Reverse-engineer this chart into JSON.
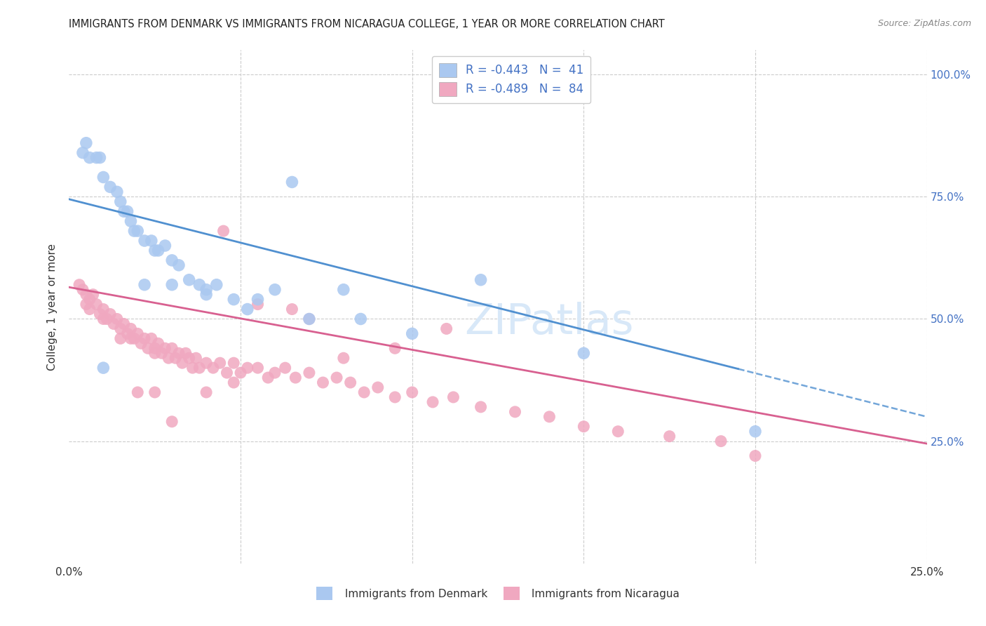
{
  "title": "IMMIGRANTS FROM DENMARK VS IMMIGRANTS FROM NICARAGUA COLLEGE, 1 YEAR OR MORE CORRELATION CHART",
  "source": "Source: ZipAtlas.com",
  "ylabel": "College, 1 year or more",
  "xlim": [
    0.0,
    0.25
  ],
  "ylim": [
    0.0,
    1.05
  ],
  "denmark_line_x": [
    0.0,
    0.25
  ],
  "denmark_line_y": [
    0.745,
    0.3
  ],
  "denmark_line_solid_end": 0.195,
  "nicaragua_line_x": [
    0.0,
    0.25
  ],
  "nicaragua_line_y": [
    0.565,
    0.245
  ],
  "denmark_dot_color": "#aac8f0",
  "denmark_line_color": "#5090d0",
  "nicaragua_dot_color": "#f0a8c0",
  "nicaragua_line_color": "#d86090",
  "background_color": "#ffffff",
  "grid_color": "#cccccc",
  "right_axis_color": "#4472c4",
  "legend_text_color": "#4472c4",
  "watermark_text": "ZIPatlas",
  "watermark_color": "#d8e8f8",
  "denmark_x": [
    0.004,
    0.005,
    0.006,
    0.008,
    0.009,
    0.01,
    0.012,
    0.014,
    0.015,
    0.017,
    0.018,
    0.019,
    0.02,
    0.022,
    0.024,
    0.026,
    0.028,
    0.03,
    0.032,
    0.035,
    0.038,
    0.04,
    0.043,
    0.048,
    0.052,
    0.06,
    0.07,
    0.08,
    0.1,
    0.12,
    0.15,
    0.2,
    0.016,
    0.025,
    0.03,
    0.055,
    0.065,
    0.085,
    0.04,
    0.022,
    0.01
  ],
  "denmark_y": [
    0.84,
    0.86,
    0.83,
    0.83,
    0.83,
    0.79,
    0.77,
    0.76,
    0.74,
    0.72,
    0.7,
    0.68,
    0.68,
    0.66,
    0.66,
    0.64,
    0.65,
    0.62,
    0.61,
    0.58,
    0.57,
    0.56,
    0.57,
    0.54,
    0.52,
    0.56,
    0.5,
    0.56,
    0.47,
    0.58,
    0.43,
    0.27,
    0.72,
    0.64,
    0.57,
    0.54,
    0.78,
    0.5,
    0.55,
    0.57,
    0.4
  ],
  "nicaragua_x": [
    0.003,
    0.004,
    0.005,
    0.005,
    0.006,
    0.006,
    0.007,
    0.008,
    0.009,
    0.01,
    0.01,
    0.011,
    0.012,
    0.013,
    0.014,
    0.015,
    0.015,
    0.016,
    0.017,
    0.018,
    0.018,
    0.019,
    0.02,
    0.021,
    0.022,
    0.023,
    0.024,
    0.025,
    0.025,
    0.026,
    0.027,
    0.028,
    0.029,
    0.03,
    0.031,
    0.032,
    0.033,
    0.034,
    0.035,
    0.036,
    0.037,
    0.038,
    0.04,
    0.042,
    0.044,
    0.046,
    0.048,
    0.05,
    0.052,
    0.055,
    0.058,
    0.06,
    0.063,
    0.066,
    0.07,
    0.074,
    0.078,
    0.082,
    0.086,
    0.09,
    0.095,
    0.1,
    0.106,
    0.112,
    0.12,
    0.13,
    0.14,
    0.15,
    0.16,
    0.175,
    0.19,
    0.2,
    0.04,
    0.045,
    0.055,
    0.07,
    0.03,
    0.025,
    0.02,
    0.048,
    0.065,
    0.08,
    0.095,
    0.11
  ],
  "nicaragua_y": [
    0.57,
    0.56,
    0.55,
    0.53,
    0.54,
    0.52,
    0.55,
    0.53,
    0.51,
    0.52,
    0.5,
    0.5,
    0.51,
    0.49,
    0.5,
    0.48,
    0.46,
    0.49,
    0.47,
    0.48,
    0.46,
    0.46,
    0.47,
    0.45,
    0.46,
    0.44,
    0.46,
    0.44,
    0.43,
    0.45,
    0.43,
    0.44,
    0.42,
    0.44,
    0.42,
    0.43,
    0.41,
    0.43,
    0.42,
    0.4,
    0.42,
    0.4,
    0.41,
    0.4,
    0.41,
    0.39,
    0.41,
    0.39,
    0.4,
    0.4,
    0.38,
    0.39,
    0.4,
    0.38,
    0.39,
    0.37,
    0.38,
    0.37,
    0.35,
    0.36,
    0.34,
    0.35,
    0.33,
    0.34,
    0.32,
    0.31,
    0.3,
    0.28,
    0.27,
    0.26,
    0.25,
    0.22,
    0.35,
    0.68,
    0.53,
    0.5,
    0.29,
    0.35,
    0.35,
    0.37,
    0.52,
    0.42,
    0.44,
    0.48
  ]
}
